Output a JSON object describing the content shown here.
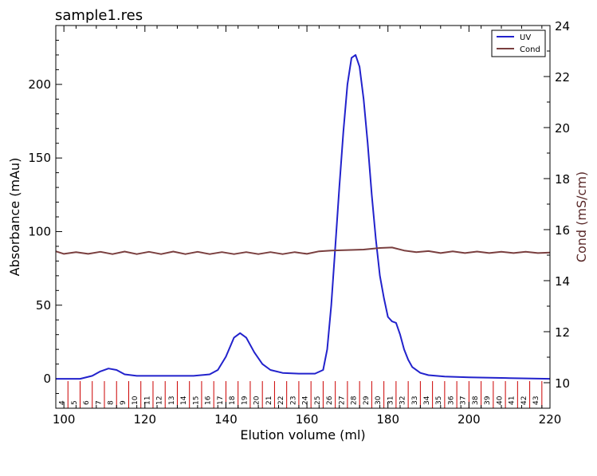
{
  "chart_data": {
    "type": "line",
    "title": "sample1.res",
    "xlabel": "Elution volume (ml)",
    "ylabel": "Absorbance (mAu)",
    "y2label": "Cond (mS/cm)",
    "xlim": [
      98,
      220
    ],
    "ylim": [
      -20,
      240
    ],
    "y2lim": [
      9,
      24
    ],
    "x_ticks": [
      100,
      120,
      140,
      160,
      180,
      200,
      220
    ],
    "y_ticks": [
      0,
      50,
      100,
      150,
      200
    ],
    "y2_ticks": [
      10,
      12,
      14,
      16,
      18,
      20,
      22,
      24
    ],
    "legend_position": "top-right",
    "series": [
      {
        "name": "UV",
        "axis": "left",
        "color": "#2222cc",
        "x": [
          98,
          104,
          107,
          109,
          111,
          113,
          115,
          118,
          125,
          132,
          136,
          138,
          140,
          142,
          143.5,
          145,
          147,
          149,
          151,
          154,
          158,
          162,
          164,
          165,
          166,
          167,
          168,
          169,
          170,
          171,
          172,
          173,
          174,
          175,
          176,
          177,
          178,
          179,
          180,
          181,
          182,
          183,
          184,
          185,
          186,
          188,
          190,
          194,
          200,
          210,
          220
        ],
        "y": [
          0,
          0,
          2,
          5,
          7,
          6,
          3,
          2,
          2,
          2,
          3,
          6,
          15,
          28,
          31,
          28,
          18,
          10,
          6,
          4,
          3.5,
          3.5,
          6,
          20,
          50,
          90,
          130,
          168,
          200,
          218,
          220,
          212,
          190,
          160,
          125,
          95,
          70,
          55,
          42,
          39,
          38,
          30,
          20,
          13,
          8,
          4,
          2.5,
          1.5,
          1,
          0.5,
          0
        ]
      },
      {
        "name": "Cond",
        "axis": "right",
        "color": "#7a3f3f",
        "x": [
          98,
          100,
          103,
          106,
          109,
          112,
          115,
          118,
          121,
          124,
          127,
          130,
          133,
          136,
          139,
          142,
          145,
          148,
          151,
          154,
          157,
          160,
          163,
          166,
          170,
          174,
          178,
          181,
          184,
          187,
          190,
          193,
          196,
          199,
          202,
          205,
          208,
          211,
          214,
          217,
          220
        ],
        "y": [
          15.15,
          15.05,
          15.12,
          15.05,
          15.13,
          15.04,
          15.14,
          15.04,
          15.13,
          15.04,
          15.14,
          15.04,
          15.13,
          15.04,
          15.12,
          15.04,
          15.12,
          15.04,
          15.12,
          15.04,
          15.12,
          15.05,
          15.15,
          15.18,
          15.2,
          15.22,
          15.28,
          15.3,
          15.18,
          15.12,
          15.16,
          15.08,
          15.15,
          15.08,
          15.14,
          15.08,
          15.13,
          15.08,
          15.13,
          15.08,
          15.1
        ]
      }
    ],
    "fractions": {
      "color": "#cc0000",
      "labels": [
        "4",
        "5",
        "6",
        "7",
        "8",
        "9",
        "10",
        "11",
        "12",
        "13",
        "14",
        "15",
        "16",
        "17",
        "18",
        "19",
        "20",
        "21",
        "22",
        "23",
        "24",
        "25",
        "26",
        "27",
        "28",
        "29",
        "30",
        "31",
        "32",
        "33",
        "34",
        "35",
        "36",
        "37",
        "38",
        "39",
        "40",
        "41",
        "42",
        "43"
      ],
      "boundaries": [
        98,
        101,
        104,
        107,
        110,
        113,
        116,
        119,
        122,
        125,
        128,
        131,
        134,
        137,
        140,
        143,
        146,
        149,
        152,
        155,
        158,
        161,
        164,
        167,
        170,
        173,
        176,
        179,
        182,
        185,
        188,
        191,
        194,
        197,
        200,
        203,
        206,
        209,
        212,
        215,
        218
      ]
    }
  }
}
